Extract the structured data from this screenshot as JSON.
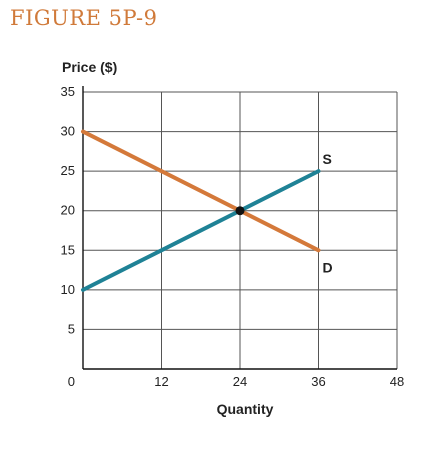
{
  "figure_title": "FIGURE 5P-9",
  "colors": {
    "title": "#d07a3a",
    "supply": "#1f8296",
    "demand": "#d4793a",
    "grid": "#555555",
    "point": "#111111"
  },
  "chart_data": {
    "type": "line",
    "ylabel": "Price ($)",
    "xlabel": "Quantity",
    "xlim": [
      0,
      48
    ],
    "ylim": [
      0,
      35
    ],
    "x_ticks": [
      0,
      12,
      24,
      36,
      48
    ],
    "y_ticks": [
      0,
      5,
      10,
      15,
      20,
      25,
      30,
      35
    ],
    "grid": true,
    "series": [
      {
        "name": "S",
        "x": [
          0,
          36
        ],
        "y": [
          10,
          25
        ],
        "color": "#1f8296"
      },
      {
        "name": "D",
        "x": [
          0,
          36
        ],
        "y": [
          30,
          15
        ],
        "color": "#d4793a"
      }
    ],
    "points": [
      {
        "x": 24,
        "y": 20
      }
    ]
  }
}
